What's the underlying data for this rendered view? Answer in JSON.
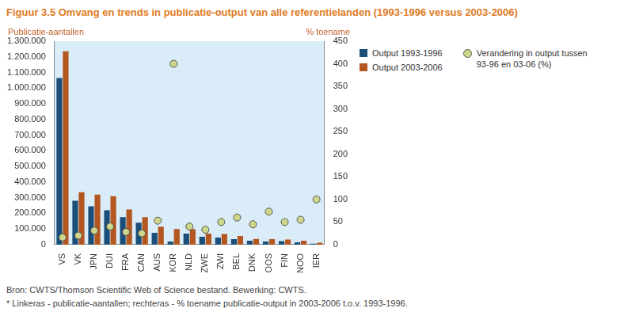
{
  "chart_data": {
    "type": "bar",
    "title": "Figuur 3.5 Omvang en trends in publicatie-output van alle referentielanden (1993-1996 versus 2003-2006)",
    "ylabel": "Publicatie-aantallen",
    "y2label": "% toename",
    "categories": [
      "VS",
      "VK",
      "JPN",
      "DUI",
      "FRA",
      "CAN",
      "AUS",
      "KOR",
      "NLD",
      "ZWE",
      "ZWI",
      "BEL",
      "DNK",
      "OOS",
      "FIN",
      "NOO",
      "IER"
    ],
    "series": [
      {
        "name": "Output 1993-1996",
        "color": "#1b4f7a",
        "values": [
          1065000,
          280000,
          245000,
          220000,
          175000,
          140000,
          75000,
          20000,
          70000,
          50000,
          45000,
          35000,
          25000,
          20000,
          22000,
          15000,
          6000
        ]
      },
      {
        "name": "Output 2003-2006",
        "color": "#b4561f",
        "values": [
          1235000,
          335000,
          320000,
          310000,
          225000,
          175000,
          115000,
          100000,
          100000,
          70000,
          68000,
          55000,
          37000,
          35000,
          32000,
          25000,
          12000
        ]
      },
      {
        "name": "Verandering in output tussen 93-96 en 03-06 (%)",
        "type": "scatter",
        "axis": "y2",
        "marker": "circle",
        "color": "#cdd68a",
        "values": [
          16,
          20,
          31,
          40,
          28,
          25,
          53,
          400,
          40,
          33,
          50,
          60,
          45,
          73,
          50,
          55,
          100
        ]
      }
    ],
    "ylim": [
      0,
      1300000
    ],
    "yticks": [
      0,
      {
        "value": 100000,
        "label": "100.000"
      },
      {
        "value": 200000,
        "label": "200.000"
      },
      {
        "value": 300000,
        "label": "300.000"
      },
      {
        "value": 400000,
        "label": "400.000"
      },
      {
        "value": 500000,
        "label": "500.000"
      },
      {
        "value": 600000,
        "label": "600.000"
      },
      {
        "value": 700000,
        "label": "700.000"
      },
      {
        "value": 800000,
        "label": "800.000"
      },
      {
        "value": 900000,
        "label": "900.000"
      },
      {
        "value": 1000000,
        "label": "1.000.000"
      },
      {
        "value": 1100000,
        "label": "1.100.000"
      },
      {
        "value": 1200000,
        "label": "1.200.000"
      },
      {
        "value": 1300000,
        "label": "1.300.000"
      }
    ],
    "y2lim": [
      0,
      450
    ],
    "y2ticks": [
      0,
      50,
      100,
      150,
      200,
      250,
      300,
      350,
      400,
      450
    ],
    "grid": false,
    "legend": "right",
    "notes": [
      "Bron: CWTS/Thomson Scientific Web of Science bestand. Bewerking: CWTS.",
      "* Linkeras - publicatie-aantallen; rechteras - % toename publicatie-output in 2003-2006 t.o.v. 1993-1996."
    ]
  }
}
